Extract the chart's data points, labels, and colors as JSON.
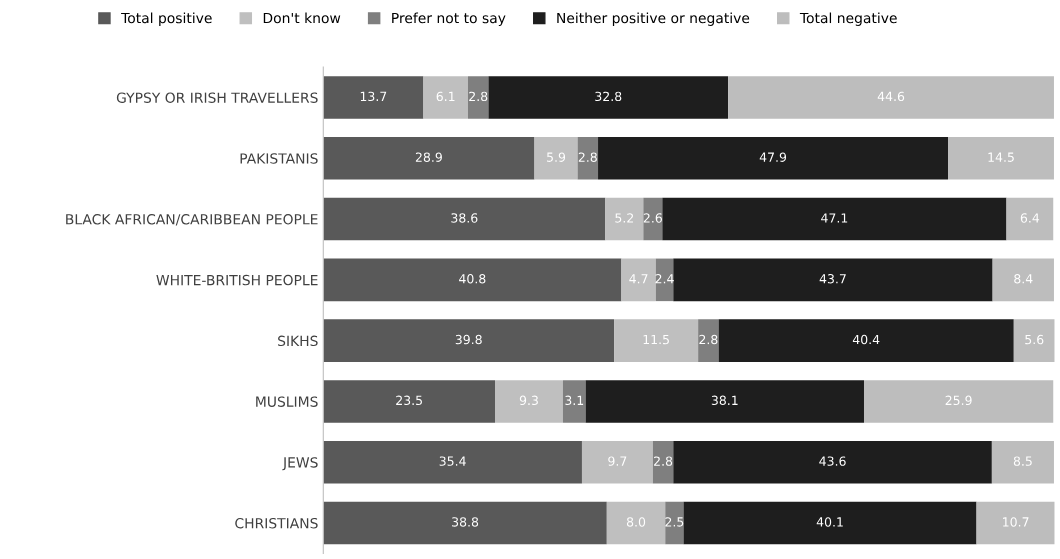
{
  "chart_data": {
    "type": "bar",
    "orientation": "horizontal",
    "stacked": true,
    "data_labels": true,
    "legend": "top",
    "tick_labels": "y",
    "grid": false,
    "categories": [
      "GYPSY OR IRISH TRAVELLERS",
      "PAKISTANIS",
      "BLACK AFRICAN/CARIBBEAN PEOPLE",
      "WHITE-BRITISH PEOPLE",
      "SIKHS",
      "MUSLIMS",
      "JEWS",
      "CHRISTIANS"
    ],
    "series": [
      {
        "name": "Total positive",
        "color": "#595959",
        "values": [
          13.7,
          28.9,
          38.6,
          40.8,
          39.8,
          23.5,
          35.4,
          38.8
        ]
      },
      {
        "name": "Don't know",
        "color": "#bfbfbf",
        "values": [
          6.1,
          5.9,
          5.2,
          4.7,
          11.5,
          9.3,
          9.7,
          8.0
        ],
        "value_labels": [
          "6.1",
          "5.9",
          "5.2",
          "4.7",
          "11.5",
          "9.3",
          "9.7",
          "8.0"
        ]
      },
      {
        "name": "Prefer not to say",
        "color": "#7f7f7f",
        "values": [
          2.8,
          2.8,
          2.6,
          2.4,
          2.8,
          3.1,
          2.8,
          2.5
        ]
      },
      {
        "name": "Neither positive or negative",
        "color": "#1e1e1e",
        "values": [
          32.8,
          47.9,
          47.1,
          43.7,
          40.4,
          38.1,
          43.6,
          40.1
        ]
      },
      {
        "name": "Total negative",
        "color": "#bdbdbd",
        "values": [
          44.6,
          14.5,
          6.4,
          8.4,
          5.6,
          25.9,
          8.5,
          10.7
        ]
      }
    ]
  }
}
